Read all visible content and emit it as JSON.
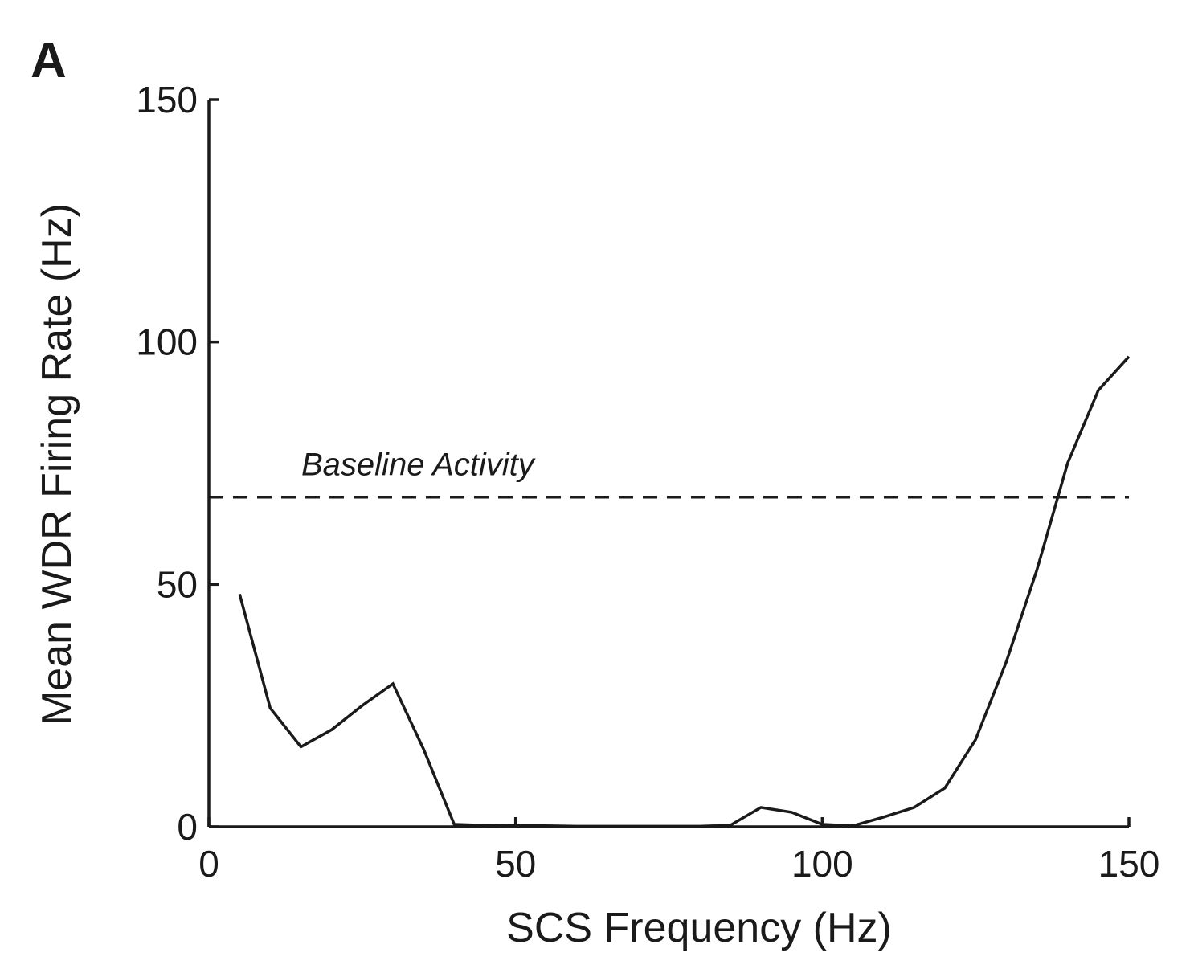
{
  "panel_label": "A",
  "chart_data": {
    "type": "line",
    "title": "",
    "xlabel": "SCS Frequency (Hz)",
    "ylabel": "Mean WDR Firing Rate (Hz)",
    "xlim": [
      0,
      150
    ],
    "ylim": [
      0,
      150
    ],
    "xticks": [
      0,
      50,
      100,
      150
    ],
    "yticks": [
      0,
      50,
      100,
      150
    ],
    "grid": false,
    "series": [
      {
        "x": [
          5,
          10,
          15,
          20,
          25,
          30,
          35,
          40,
          45,
          50,
          55,
          60,
          65,
          70,
          75,
          80,
          85,
          90,
          95,
          100,
          105,
          110,
          115,
          120,
          125,
          130,
          135,
          140,
          145,
          150
        ],
        "y": [
          48,
          24.5,
          16.5,
          20,
          25,
          29.5,
          16,
          0.5,
          0.3,
          0.2,
          0.2,
          0.1,
          0.1,
          0.1,
          0.1,
          0.1,
          0.3,
          4,
          3,
          0.5,
          0.2,
          2,
          4,
          8,
          18,
          34,
          53,
          75,
          90,
          97
        ]
      }
    ],
    "reference_lines": [
      {
        "orientation": "horizontal",
        "y": 68,
        "style": "dashed",
        "label": "Baseline Activity"
      }
    ]
  }
}
